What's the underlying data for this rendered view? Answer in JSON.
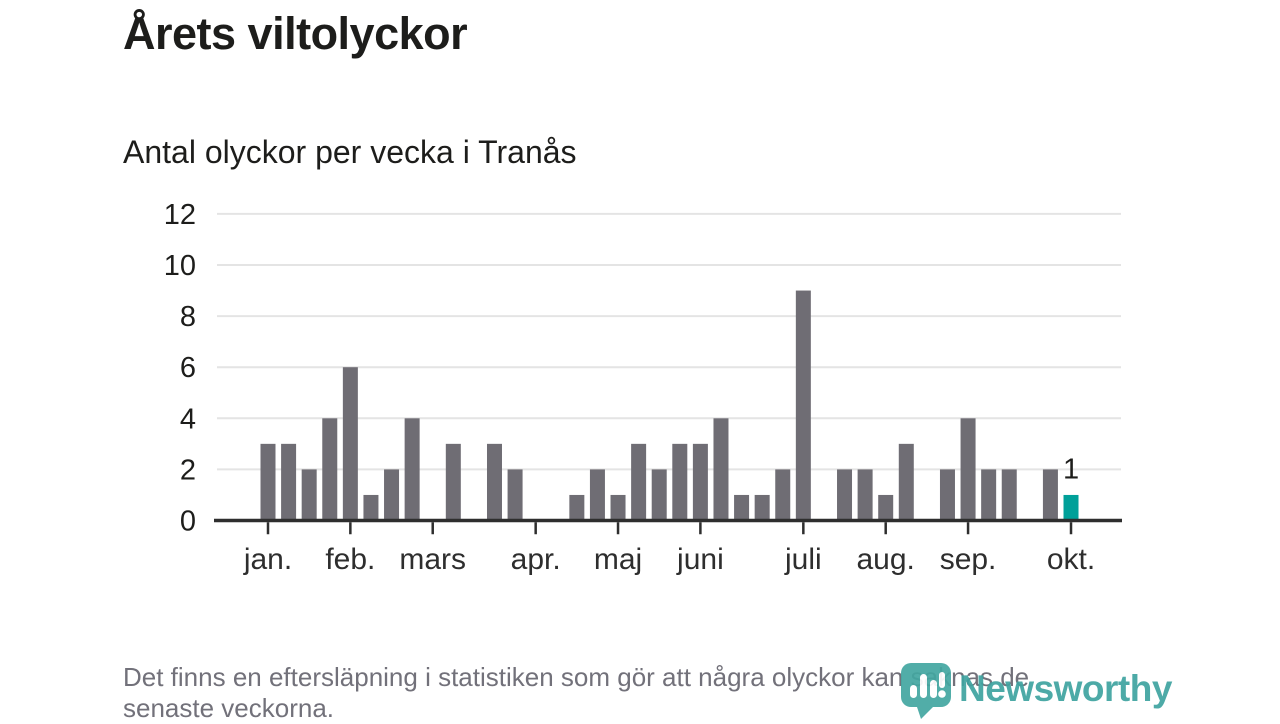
{
  "header": {
    "title": "Årets viltolyckor",
    "subtitle": "Antal olyckor per vecka i Tranås"
  },
  "chart_data": {
    "type": "bar",
    "title": "Årets viltolyckor",
    "subtitle": "Antal olyckor per vecka i Tranås",
    "xlabel": "",
    "ylabel": "",
    "ylim": [
      0,
      12
    ],
    "yticks": [
      0,
      2,
      4,
      6,
      8,
      10,
      12
    ],
    "grid": "horizontal",
    "x_unit": "week",
    "values": [
      3,
      3,
      2,
      4,
      6,
      1,
      2,
      4,
      0,
      3,
      0,
      3,
      2,
      0,
      0,
      1,
      2,
      1,
      3,
      2,
      3,
      3,
      4,
      1,
      1,
      2,
      9,
      0,
      2,
      2,
      1,
      3,
      0,
      2,
      4,
      2,
      2,
      0,
      2,
      1
    ],
    "month_ticks": [
      {
        "label": "jan.",
        "week": 0
      },
      {
        "label": "feb.",
        "week": 4
      },
      {
        "label": "mars",
        "week": 8
      },
      {
        "label": "apr.",
        "week": 13
      },
      {
        "label": "maj",
        "week": 17
      },
      {
        "label": "juni",
        "week": 21
      },
      {
        "label": "juli",
        "week": 26
      },
      {
        "label": "aug.",
        "week": 30
      },
      {
        "label": "sep.",
        "week": 34
      },
      {
        "label": "okt.",
        "week": 39
      }
    ],
    "highlight_index": 39,
    "annotation": {
      "text": "1",
      "week": 39
    },
    "colors": {
      "bar": "#6f6d74",
      "highlight": "#00a099",
      "gridline": "#e4e4e4",
      "axis": "#2e2e2e",
      "tick_label": "#1d1d1b"
    },
    "legend": "none"
  },
  "footer": {
    "line1": "Det finns en eftersläpning i statistiken som gör att några olyckor kan saknas de",
    "line2": "senaste veckorna."
  },
  "logo": {
    "text": "Newsworthy",
    "icon": "bar-chart-pin",
    "color": "#3ea3a0",
    "icon_color": "#43a7a1"
  }
}
